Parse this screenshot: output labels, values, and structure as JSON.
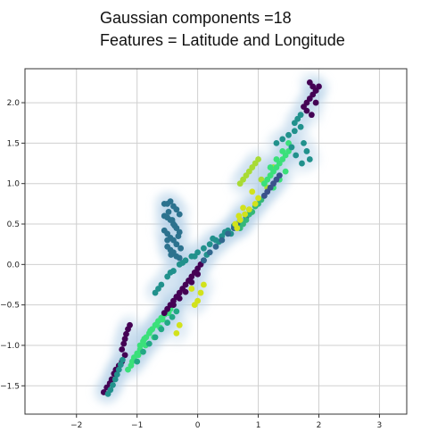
{
  "title_lines": [
    "Gaussian components =18",
    "Features = Latitude and Longitude"
  ],
  "chart_data": {
    "type": "scatter",
    "title": "Gaussian components =18 Features = Latitude and Longitude",
    "xlabel": "",
    "ylabel": "",
    "xlim": [
      -2.85,
      3.45
    ],
    "ylim": [
      -1.85,
      2.42
    ],
    "xticks": [
      -2,
      -1,
      0,
      1,
      2,
      3
    ],
    "yticks": [
      -1.5,
      -1.0,
      -0.5,
      0.0,
      0.5,
      1.0,
      1.5,
      2.0
    ],
    "xtick_labels": [
      "−2",
      "−1",
      "0",
      "1",
      "2",
      "3"
    ],
    "ytick_labels": [
      "−1.5",
      "−1.0",
      "−0.5",
      "0.0",
      "0.5",
      "1.0",
      "1.5",
      "2.0"
    ],
    "grid": true,
    "point_colors": [
      "#440154",
      "#2c728e",
      "#21918c",
      "#22a884",
      "#35b779",
      "#3ae07a",
      "#a8db34",
      "#d2e21b",
      "#31688e",
      "#3b518b"
    ],
    "density_color": "#b8d0e6",
    "series": [
      {
        "color_index": 0,
        "x": [
          -1.55,
          -1.5,
          -1.45,
          -1.42,
          -1.38,
          -1.35,
          -1.3,
          -1.25,
          -1.2
        ],
        "y": [
          -1.58,
          -1.52,
          -1.47,
          -1.42,
          -1.35,
          -1.3,
          -1.25,
          -1.2,
          -1.12
        ]
      },
      {
        "color_index": 2,
        "x": [
          -1.48,
          -1.44,
          -1.4,
          -1.36,
          -1.33,
          -1.3,
          -1.27,
          -1.24
        ],
        "y": [
          -1.6,
          -1.55,
          -1.49,
          -1.42,
          -1.36,
          -1.3,
          -1.24,
          -1.18
        ]
      },
      {
        "color_index": 0,
        "x": [
          -1.25,
          -1.22,
          -1.2,
          -1.18,
          -1.15,
          -1.12
        ],
        "y": [
          -1.05,
          -0.98,
          -0.92,
          -0.86,
          -0.8,
          -0.75
        ]
      },
      {
        "color_index": 5,
        "x": [
          -1.1,
          -1.0,
          -0.95,
          -0.9,
          -0.85,
          -0.8,
          -0.75,
          -0.7,
          -0.65,
          -0.6,
          -0.55,
          -0.5,
          -0.45,
          -0.4,
          -1.05,
          -0.95,
          -0.88,
          -0.78,
          -0.68,
          -0.58,
          -0.48,
          -1.15,
          -1.08,
          -0.98,
          -0.86,
          -0.72,
          -0.62
        ],
        "y": [
          -1.25,
          -1.1,
          -1.0,
          -0.95,
          -0.9,
          -0.85,
          -0.8,
          -0.75,
          -0.7,
          -0.66,
          -0.62,
          -0.58,
          -0.55,
          -0.5,
          -1.15,
          -1.05,
          -0.92,
          -0.82,
          -0.74,
          -0.68,
          -0.6,
          -1.3,
          -1.2,
          -1.12,
          -1.0,
          -0.9,
          -0.78
        ]
      },
      {
        "color_index": 3,
        "x": [
          -1.0,
          -0.9,
          -0.8,
          -0.7,
          -0.6,
          -0.5,
          -0.42,
          -0.35
        ],
        "y": [
          -1.2,
          -1.08,
          -0.98,
          -0.9,
          -0.8,
          -0.72,
          -0.65,
          -0.58
        ]
      },
      {
        "color_index": 1,
        "x": [
          -0.55,
          -0.5,
          -0.45,
          -0.4,
          -0.35,
          -0.3,
          -0.55,
          -0.5,
          -0.45,
          -0.4,
          -0.35,
          -0.3,
          -0.55,
          -0.5,
          -0.45,
          -0.4,
          -0.35,
          -0.28,
          -0.5,
          -0.45,
          -0.4,
          -0.35,
          -0.3,
          -0.48,
          -0.42,
          -0.38,
          -0.32,
          -0.5,
          -0.44
        ],
        "y": [
          0.75,
          0.75,
          0.78,
          0.72,
          0.68,
          0.62,
          0.6,
          0.58,
          0.55,
          0.5,
          0.45,
          0.4,
          0.42,
          0.38,
          0.33,
          0.3,
          0.25,
          0.2,
          0.22,
          0.18,
          0.15,
          0.1,
          0.08,
          0.65,
          0.55,
          0.48,
          0.35,
          0.3,
          0.12
        ]
      },
      {
        "color_index": 2,
        "x": [
          -0.7,
          -0.6,
          -0.5,
          -0.4,
          -0.3,
          -0.2,
          -0.1,
          0.0,
          0.1,
          0.2,
          0.3,
          0.4,
          0.5,
          0.6,
          0.7,
          -0.65,
          -0.45,
          -0.25,
          -0.05,
          0.15,
          0.35,
          0.55,
          0.25,
          0.45,
          0.65
        ],
        "y": [
          -0.35,
          -0.25,
          -0.15,
          -0.08,
          0.0,
          0.05,
          0.1,
          0.15,
          0.2,
          0.25,
          0.3,
          0.35,
          0.42,
          0.48,
          0.55,
          -0.3,
          -0.1,
          0.02,
          0.1,
          0.12,
          0.28,
          0.38,
          0.32,
          0.4,
          0.5
        ]
      },
      {
        "color_index": 0,
        "x": [
          -0.55,
          -0.5,
          -0.45,
          -0.4,
          -0.35,
          -0.3,
          -0.25,
          -0.2,
          -0.15,
          -0.1,
          -0.05,
          0.0,
          0.05,
          0.1,
          -0.4,
          -0.3,
          -0.2,
          -0.1,
          0.0
        ],
        "y": [
          -0.6,
          -0.55,
          -0.5,
          -0.45,
          -0.4,
          -0.35,
          -0.3,
          -0.25,
          -0.2,
          -0.15,
          -0.1,
          -0.05,
          0.0,
          0.05,
          -0.5,
          -0.42,
          -0.34,
          -0.22,
          -0.12
        ]
      },
      {
        "color_index": 8,
        "x": [
          0.1,
          0.2,
          0.3,
          0.4,
          0.5,
          0.6,
          0.7,
          0.8
        ],
        "y": [
          0.05,
          0.15,
          0.22,
          0.3,
          0.38,
          0.45,
          0.5,
          0.58
        ]
      },
      {
        "color_index": 4,
        "x": [
          0.7,
          0.8,
          0.9,
          1.0,
          1.1,
          0.75,
          0.85,
          0.95,
          1.05
        ],
        "y": [
          0.45,
          0.55,
          0.65,
          0.75,
          0.85,
          0.5,
          0.62,
          0.72,
          0.8
        ]
      },
      {
        "color_index": 7,
        "x": [
          -0.1,
          -0.05,
          0.0,
          0.05,
          0.1,
          -0.3,
          -0.35,
          0.65,
          0.7,
          0.78,
          0.85,
          0.95,
          1.0,
          0.9,
          0.75,
          0.68,
          0.62
        ],
        "y": [
          -0.3,
          -0.5,
          -0.45,
          -0.35,
          -0.25,
          -0.75,
          -0.85,
          0.45,
          0.55,
          0.62,
          0.68,
          0.75,
          0.82,
          0.9,
          0.7,
          0.6,
          0.5
        ]
      },
      {
        "color_index": 6,
        "x": [
          0.7,
          0.75,
          0.8,
          0.85,
          0.9,
          0.95,
          1.0,
          1.05,
          1.1,
          1.15,
          1.2,
          1.25
        ],
        "y": [
          1.0,
          1.05,
          1.1,
          1.15,
          1.2,
          1.25,
          1.3,
          1.05,
          1.0,
          0.95,
          1.1,
          1.2
        ]
      },
      {
        "color_index": 5,
        "x": [
          1.1,
          1.15,
          1.2,
          1.25,
          1.3,
          1.35,
          1.4,
          1.45,
          1.5,
          1.55,
          1.2,
          1.3,
          1.4,
          1.5,
          1.25,
          1.35,
          1.45
        ],
        "y": [
          1.0,
          1.05,
          1.1,
          1.15,
          1.2,
          1.25,
          1.3,
          1.35,
          1.4,
          1.45,
          1.2,
          1.3,
          1.4,
          1.5,
          0.95,
          1.05,
          1.15
        ]
      },
      {
        "color_index": 2,
        "x": [
          1.3,
          1.4,
          1.5,
          1.6,
          1.7,
          1.75,
          1.8,
          1.85,
          1.6,
          1.65,
          1.7,
          1.55,
          1.62,
          1.72
        ],
        "y": [
          1.5,
          1.55,
          1.6,
          1.65,
          1.7,
          1.5,
          1.4,
          1.3,
          1.75,
          1.8,
          1.85,
          1.45,
          1.35,
          1.25
        ]
      },
      {
        "color_index": 0,
        "x": [
          1.75,
          1.8,
          1.85,
          1.9,
          1.95,
          2.0,
          1.85,
          1.9,
          1.95,
          1.8,
          1.88,
          1.95
        ],
        "y": [
          1.95,
          2.0,
          2.05,
          2.1,
          2.15,
          2.2,
          2.25,
          2.2,
          2.15,
          1.9,
          1.85,
          2.0
        ]
      },
      {
        "color_index": 9,
        "x": [
          1.1,
          1.15,
          1.2,
          1.25,
          1.3,
          1.35
        ],
        "y": [
          0.85,
          0.9,
          0.95,
          1.0,
          1.05,
          1.1
        ]
      }
    ]
  }
}
